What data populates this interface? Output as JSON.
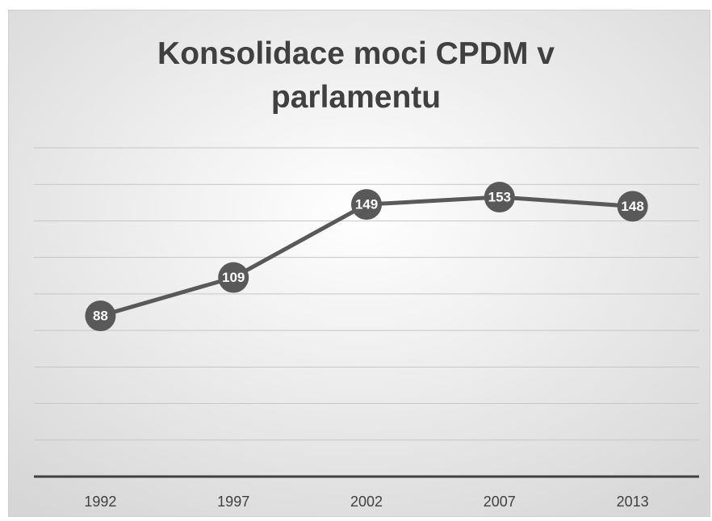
{
  "chart_data": {
    "type": "line",
    "title": "Konsolidace moci CPDM v parlamentu",
    "categories": [
      "1992",
      "1997",
      "2002",
      "2007",
      "2013"
    ],
    "values": [
      88,
      109,
      149,
      153,
      148
    ],
    "color": "#595959",
    "ylim": [
      0,
      180
    ],
    "yticks": [
      0,
      20,
      40,
      60,
      80,
      100,
      120,
      140,
      160,
      180
    ],
    "grid": true
  }
}
